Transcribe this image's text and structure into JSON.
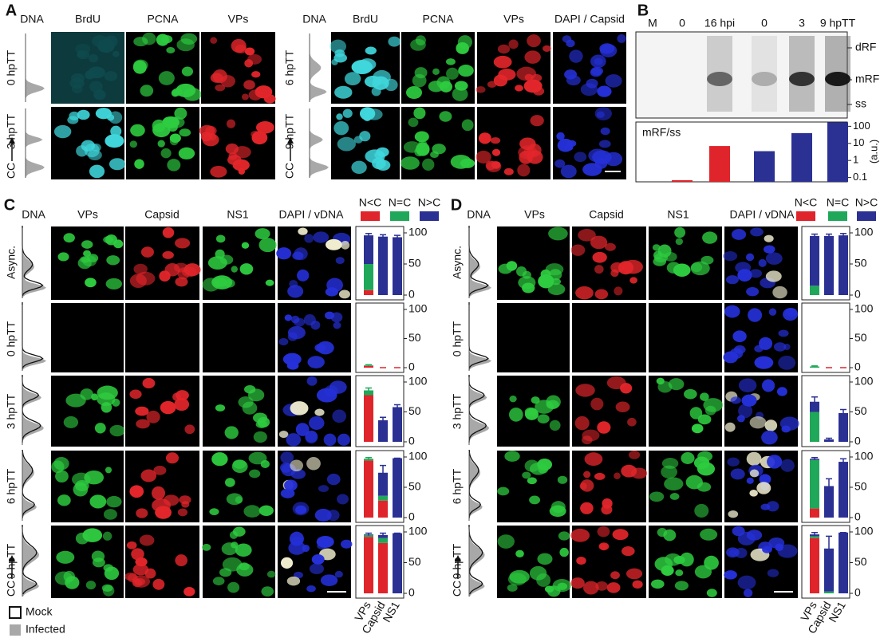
{
  "panels": {
    "A": {
      "label": "A",
      "left_headers": [
        "DNA",
        "BrdU",
        "PCNA",
        "VPs"
      ],
      "right_headers": [
        "DNA",
        "BrdU",
        "PCNA",
        "VPs",
        "DAPI / Capsid"
      ],
      "left_rows": [
        "0 hpTT",
        "3 hpTT"
      ],
      "right_rows": [
        "6 hpTT",
        "9 hpTT"
      ],
      "axis_label": "CC"
    },
    "B": {
      "label": "B",
      "lanes": [
        "M",
        "0",
        "16 hpi",
        "0",
        "3",
        "9 hpTT"
      ],
      "lane_colors": [
        "#111111",
        "#e0242b",
        "#e0242b",
        "#2b3192",
        "#2b3192",
        "#2b3192"
      ],
      "bands": [
        "dRF",
        "mRF",
        "ss"
      ]
    },
    "C": {
      "label": "C",
      "headers": [
        "DNA",
        "VPs",
        "Capsid",
        "NS1",
        "DAPI / vDNA"
      ],
      "rows": [
        "Async.",
        "0 hpTT",
        "3 hpTT",
        "6 hpTT",
        "9 hpTT"
      ],
      "axis_label": "CC"
    },
    "D": {
      "label": "D",
      "headers": [
        "DNA",
        "VPs",
        "Capsid",
        "NS1",
        "DAPI / vDNA"
      ],
      "rows": [
        "Async.",
        "0 hpTT",
        "3 hpTT",
        "6 hpTT",
        "9 hpTT"
      ],
      "axis_label": "CC"
    }
  },
  "legend": {
    "mock": "Mock",
    "infected": "Infected"
  },
  "chart_data": [
    {
      "type": "log_bar",
      "title": "mRF/ss",
      "y_label": "(a.u.)",
      "log_scale": true,
      "values": [
        0.07,
        7,
        3.5,
        40,
        170
      ],
      "colors": [
        "#e0242b",
        "#e0242b",
        "#2b3192",
        "#2b3192",
        "#2b3192"
      ],
      "ylim": [
        0.056,
        178
      ],
      "yticks": [
        0.1,
        1,
        10,
        100
      ]
    },
    {
      "type": "stacked_bar",
      "categories": [
        "VPs",
        "Capsid",
        "NS1"
      ],
      "series": [
        {
          "name": "N<C",
          "color": "#e0242b"
        },
        {
          "name": "N=C",
          "color": "#1fa85a"
        },
        {
          "name": "N>C",
          "color": "#2b3192"
        }
      ],
      "ylim": [
        0,
        100
      ],
      "yticks": [
        0,
        50,
        100
      ],
      "rows": [
        {
          "values": [
            [
              8,
              0,
              0
            ],
            [
              42,
              0,
              0
            ],
            [
              46,
              94,
              93
            ]
          ],
          "errors": [
            3,
            3,
            3
          ]
        },
        {
          "values": [
            [
              3,
              0,
              0
            ],
            [
              1,
              0,
              0
            ],
            [
              0,
              0,
              0
            ]
          ],
          "errors": [
            1,
            0,
            0
          ]
        },
        {
          "values": [
            [
              78,
              0,
              0
            ],
            [
              8,
              0,
              0
            ],
            [
              0,
              36,
              58
            ]
          ],
          "errors": [
            4,
            5,
            4
          ]
        },
        {
          "values": [
            [
              94,
              28,
              0
            ],
            [
              3,
              8,
              0
            ],
            [
              0,
              38,
              98
            ]
          ],
          "errors": [
            2,
            12,
            0
          ]
        },
        {
          "values": [
            [
              92,
              82,
              0
            ],
            [
              3,
              8,
              0
            ],
            [
              1,
              5,
              98
            ]
          ],
          "errors": [
            2,
            3,
            0
          ]
        }
      ]
    },
    {
      "type": "stacked_bar",
      "categories": [
        "VPs",
        "Capsid",
        "NS1"
      ],
      "series": [
        {
          "name": "N<C",
          "color": "#e0242b"
        },
        {
          "name": "N=C",
          "color": "#1fa85a"
        },
        {
          "name": "N>C",
          "color": "#2b3192"
        }
      ],
      "ylim": [
        0,
        100
      ],
      "yticks": [
        0,
        50,
        100
      ],
      "rows": [
        {
          "values": [
            [
              0,
              0,
              0
            ],
            [
              15,
              0,
              0
            ],
            [
              80,
              95,
              96
            ]
          ],
          "errors": [
            3,
            3,
            3
          ]
        },
        {
          "values": [
            [
              0,
              0,
              0
            ],
            [
              2,
              0,
              0
            ],
            [
              0,
              0,
              0
            ]
          ],
          "errors": [
            1,
            0,
            0
          ]
        },
        {
          "values": [
            [
              0,
              0,
              0
            ],
            [
              50,
              0,
              0
            ],
            [
              17,
              4,
              48
            ]
          ],
          "errors": [
            8,
            2,
            6
          ]
        },
        {
          "values": [
            [
              15,
              0,
              0
            ],
            [
              80,
              0,
              0
            ],
            [
              2,
              52,
              92
            ]
          ],
          "errors": [
            2,
            12,
            5
          ]
        },
        {
          "values": [
            [
              90,
              0,
              0
            ],
            [
              3,
              3,
              0
            ],
            [
              3,
              70,
              99
            ]
          ],
          "errors": [
            3,
            20,
            0
          ]
        }
      ]
    }
  ]
}
